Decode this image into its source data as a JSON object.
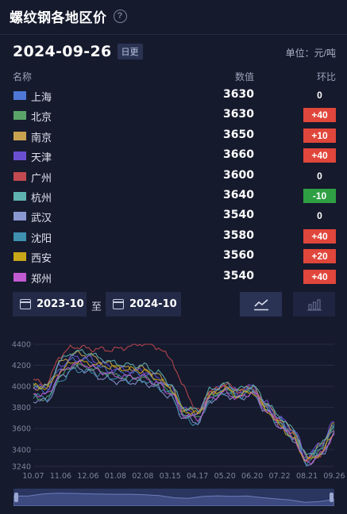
{
  "header": {
    "title": "螺纹钢各地区价",
    "help_icon": "?"
  },
  "date": "2024-09-26",
  "badge": "日更",
  "unit": "单位：元/吨",
  "columns": {
    "name": "名称",
    "value": "数值",
    "change": "环比"
  },
  "rows": [
    {
      "city": "上海",
      "value": "3630",
      "change": "0",
      "trend": "flat",
      "color": "#4f78d6"
    },
    {
      "city": "北京",
      "value": "3630",
      "change": "+40",
      "trend": "up",
      "color": "#5aa469"
    },
    {
      "city": "南京",
      "value": "3650",
      "change": "+10",
      "trend": "up",
      "color": "#c9a24f"
    },
    {
      "city": "天津",
      "value": "3660",
      "change": "+40",
      "trend": "up",
      "color": "#6a4fd1"
    },
    {
      "city": "广州",
      "value": "3600",
      "change": "0",
      "trend": "flat",
      "color": "#c2494f"
    },
    {
      "city": "杭州",
      "value": "3640",
      "change": "-10",
      "trend": "down",
      "color": "#5fb3b0"
    },
    {
      "city": "武汉",
      "value": "3540",
      "change": "0",
      "trend": "flat",
      "color": "#8a97d1"
    },
    {
      "city": "沈阳",
      "value": "3580",
      "change": "+40",
      "trend": "up",
      "color": "#3f8fb0"
    },
    {
      "city": "西安",
      "value": "3560",
      "change": "+20",
      "trend": "up",
      "color": "#c8a818"
    },
    {
      "city": "郑州",
      "value": "3540",
      "change": "+40",
      "trend": "up",
      "color": "#c25bd1"
    }
  ],
  "range": {
    "start": "2023-10",
    "separator": "至",
    "end": "2024-10"
  },
  "toggles": {
    "line_icon": "line-chart-icon",
    "bar_icon": "bar-chart-icon"
  },
  "chart_data": {
    "type": "line",
    "x_ticks": [
      "10.07",
      "11.06",
      "12.06",
      "01.08",
      "02.08",
      "03.15",
      "04.17",
      "05.20",
      "06.20",
      "07.22",
      "08.21",
      "09.26"
    ],
    "y_ticks": [
      3240,
      3400,
      3600,
      3800,
      4000,
      4200,
      4400
    ],
    "ylim": [
      3240,
      4400
    ],
    "grid": true,
    "anchors": [
      "10.07",
      "10.20",
      "11.06",
      "11.20",
      "12.06",
      "12.20",
      "01.08",
      "01.25",
      "02.08",
      "02.25",
      "03.15",
      "03.30",
      "04.17",
      "05.01",
      "05.20",
      "06.05",
      "06.20",
      "07.05",
      "07.22",
      "08.05",
      "08.21",
      "09.05",
      "09.26"
    ],
    "series": [
      {
        "name": "上海",
        "values": [
          3980,
          3960,
          4180,
          4260,
          4240,
          4170,
          4140,
          4120,
          4120,
          4060,
          3980,
          3760,
          3730,
          3930,
          3990,
          3930,
          3980,
          3820,
          3680,
          3560,
          3310,
          3420,
          3630
        ]
      },
      {
        "name": "北京",
        "values": [
          3900,
          3880,
          4100,
          4200,
          4180,
          4140,
          4100,
          4080,
          4080,
          4030,
          3960,
          3740,
          3700,
          3900,
          3960,
          3910,
          3970,
          3800,
          3660,
          3530,
          3300,
          3400,
          3630
        ]
      },
      {
        "name": "南京",
        "values": [
          3990,
          3990,
          4230,
          4310,
          4300,
          4240,
          4190,
          4170,
          4170,
          4110,
          4000,
          3780,
          3750,
          3950,
          4000,
          3950,
          3990,
          3830,
          3690,
          3580,
          3330,
          3440,
          3650
        ]
      },
      {
        "name": "天津",
        "values": [
          3990,
          3990,
          4200,
          4280,
          4270,
          4210,
          4170,
          4150,
          4150,
          4090,
          4000,
          3780,
          3750,
          3950,
          4010,
          3950,
          4000,
          3840,
          3700,
          3590,
          3340,
          3450,
          3660
        ]
      },
      {
        "name": "广州",
        "values": [
          4050,
          4030,
          4300,
          4380,
          4360,
          4350,
          4350,
          4380,
          4410,
          4380,
          4270,
          3990,
          3760,
          3950,
          4020,
          3960,
          3990,
          3810,
          3660,
          3540,
          3290,
          3360,
          3600
        ]
      },
      {
        "name": "杭州",
        "values": [
          4010,
          4000,
          4250,
          4330,
          4320,
          4260,
          4220,
          4200,
          4200,
          4140,
          4030,
          3800,
          3770,
          3970,
          4020,
          3970,
          4010,
          3850,
          3710,
          3590,
          3340,
          3440,
          3640
        ]
      },
      {
        "name": "武汉",
        "values": [
          3870,
          3860,
          4090,
          4180,
          4150,
          4080,
          4050,
          4040,
          4040,
          3990,
          3900,
          3700,
          3660,
          3870,
          3920,
          3880,
          3930,
          3770,
          3620,
          3500,
          3260,
          3340,
          3540
        ]
      },
      {
        "name": "沈阳",
        "values": [
          3910,
          3890,
          4060,
          4160,
          4140,
          4110,
          4080,
          4060,
          4060,
          4000,
          3930,
          3700,
          3640,
          3880,
          3950,
          3900,
          3960,
          3790,
          3640,
          3510,
          3280,
          3370,
          3580
        ]
      },
      {
        "name": "西安",
        "values": [
          4000,
          3990,
          4150,
          4240,
          4220,
          4200,
          4180,
          4160,
          4150,
          4080,
          3990,
          3770,
          3740,
          3920,
          3980,
          3910,
          3950,
          3780,
          3630,
          3500,
          3290,
          3360,
          3560
        ]
      },
      {
        "name": "郑州",
        "values": [
          3930,
          3920,
          4130,
          4220,
          4200,
          4140,
          4100,
          4090,
          4090,
          4030,
          3940,
          3730,
          3690,
          3890,
          3940,
          3890,
          3940,
          3780,
          3630,
          3510,
          3270,
          3350,
          3540
        ]
      }
    ]
  }
}
